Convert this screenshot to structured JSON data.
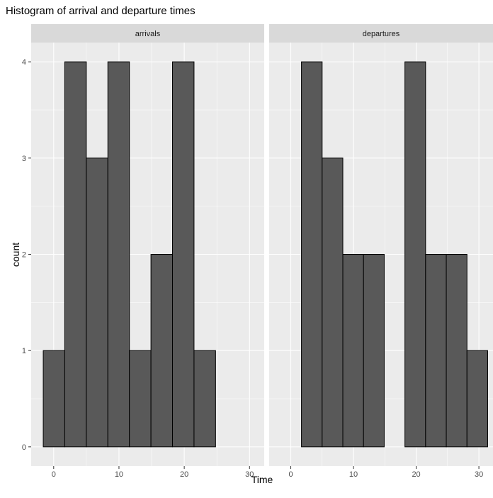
{
  "chart_data": {
    "type": "bar",
    "title": "Histogram of arrival and departure times",
    "xlabel": "Time",
    "ylabel": "count",
    "xlim": [
      -3.45,
      32.25
    ],
    "ylim": [
      -0.2,
      4.2
    ],
    "x_ticks": [
      0,
      10,
      20,
      30
    ],
    "y_ticks": [
      0,
      1,
      2,
      3,
      4
    ],
    "bin_edges": [
      -1.6,
      1.7,
      5.0,
      8.3,
      11.6,
      14.9,
      18.2,
      21.5,
      24.8,
      28.1,
      31.4
    ],
    "grid": true,
    "legend": "none",
    "colors": {
      "bar_fill": "#595959",
      "bar_stroke": "#000000",
      "panel_bg": "#ebebeb",
      "strip_bg": "#d9d9d9",
      "grid": "#ffffff"
    },
    "panels": [
      {
        "strip": "arrivals",
        "counts": [
          1,
          4,
          3,
          4,
          1,
          2,
          4,
          1,
          0,
          0
        ]
      },
      {
        "strip": "departures",
        "counts": [
          0,
          4,
          3,
          2,
          2,
          0,
          4,
          2,
          2,
          1
        ]
      }
    ]
  }
}
